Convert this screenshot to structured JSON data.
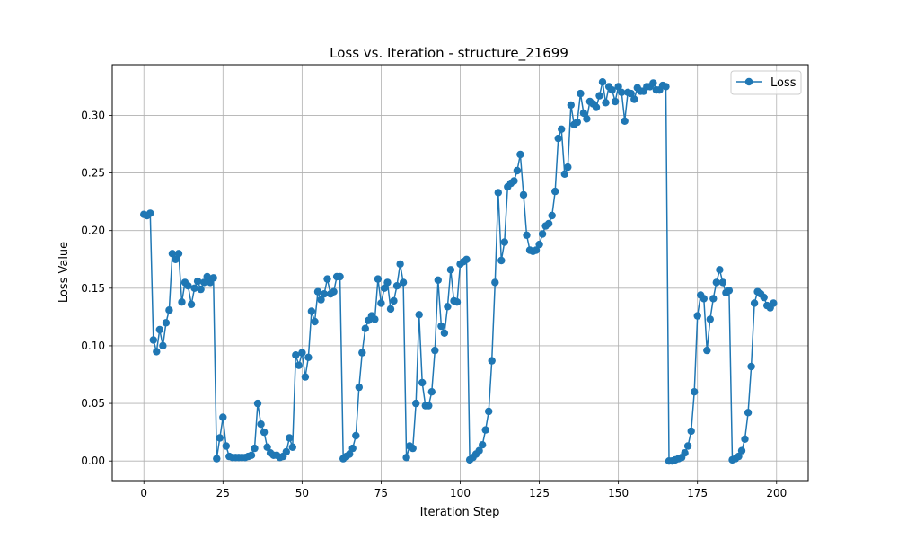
{
  "chart_data": {
    "type": "line",
    "title": "Loss vs. Iteration - structure_21699",
    "xlabel": "Iteration Step",
    "ylabel": "Loss Value",
    "xlim": [
      -10,
      210
    ],
    "ylim": [
      -0.017,
      0.344
    ],
    "xticks": [
      0,
      25,
      50,
      75,
      100,
      125,
      150,
      175,
      200
    ],
    "yticks": [
      0.0,
      0.05,
      0.1,
      0.15,
      0.2,
      0.25,
      0.3
    ],
    "xtick_labels": [
      "0",
      "25",
      "50",
      "75",
      "100",
      "125",
      "150",
      "175",
      "200"
    ],
    "ytick_labels": [
      "0.00",
      "0.05",
      "0.10",
      "0.15",
      "0.20",
      "0.25",
      "0.30"
    ],
    "grid": true,
    "legend_position": "top-right",
    "color": "#1f77b4",
    "series": [
      {
        "name": "Loss",
        "x": [
          0,
          1,
          2,
          3,
          4,
          5,
          6,
          7,
          8,
          9,
          10,
          11,
          12,
          13,
          14,
          15,
          16,
          17,
          18,
          19,
          20,
          21,
          22,
          23,
          24,
          25,
          26,
          27,
          28,
          29,
          30,
          31,
          32,
          33,
          34,
          35,
          36,
          37,
          38,
          39,
          40,
          41,
          42,
          43,
          44,
          45,
          46,
          47,
          48,
          49,
          50,
          51,
          52,
          53,
          54,
          55,
          56,
          57,
          58,
          59,
          60,
          61,
          62,
          63,
          64,
          65,
          66,
          67,
          68,
          69,
          70,
          71,
          72,
          73,
          74,
          75,
          76,
          77,
          78,
          79,
          80,
          81,
          82,
          83,
          84,
          85,
          86,
          87,
          88,
          89,
          90,
          91,
          92,
          93,
          94,
          95,
          96,
          97,
          98,
          99,
          100,
          101,
          102,
          103,
          104,
          105,
          106,
          107,
          108,
          109,
          110,
          111,
          112,
          113,
          114,
          115,
          116,
          117,
          118,
          119,
          120,
          121,
          122,
          123,
          124,
          125,
          126,
          127,
          128,
          129,
          130,
          131,
          132,
          133,
          134,
          135,
          136,
          137,
          138,
          139,
          140,
          141,
          142,
          143,
          144,
          145,
          146,
          147,
          148,
          149,
          150,
          151,
          152,
          153,
          154,
          155,
          156,
          157,
          158,
          159,
          160,
          161,
          162,
          163,
          164,
          165,
          166,
          167,
          168,
          169,
          170,
          171,
          172,
          173,
          174,
          175,
          176,
          177,
          178,
          179,
          180,
          181,
          182,
          183,
          184,
          185,
          186,
          187,
          188,
          189,
          190,
          191,
          192,
          193,
          194,
          195,
          196,
          197,
          198,
          199
        ],
        "values": [
          0.214,
          0.213,
          0.215,
          0.105,
          0.095,
          0.114,
          0.1,
          0.12,
          0.131,
          0.18,
          0.175,
          0.18,
          0.138,
          0.155,
          0.152,
          0.136,
          0.15,
          0.156,
          0.149,
          0.155,
          0.16,
          0.155,
          0.159,
          0.002,
          0.02,
          0.038,
          0.013,
          0.004,
          0.003,
          0.003,
          0.003,
          0.003,
          0.003,
          0.004,
          0.005,
          0.011,
          0.05,
          0.032,
          0.025,
          0.012,
          0.007,
          0.005,
          0.005,
          0.003,
          0.004,
          0.008,
          0.02,
          0.012,
          0.092,
          0.083,
          0.094,
          0.073,
          0.09,
          0.13,
          0.121,
          0.147,
          0.14,
          0.145,
          0.158,
          0.145,
          0.147,
          0.16,
          0.16,
          0.002,
          0.004,
          0.006,
          0.011,
          0.022,
          0.064,
          0.094,
          0.115,
          0.122,
          0.126,
          0.123,
          0.158,
          0.137,
          0.15,
          0.155,
          0.132,
          0.139,
          0.152,
          0.171,
          0.155,
          0.003,
          0.013,
          0.011,
          0.05,
          0.127,
          0.068,
          0.048,
          0.048,
          0.06,
          0.096,
          0.157,
          0.117,
          0.111,
          0.134,
          0.166,
          0.139,
          0.138,
          0.171,
          0.173,
          0.175,
          0.001,
          0.003,
          0.006,
          0.009,
          0.014,
          0.027,
          0.043,
          0.087,
          0.155,
          0.233,
          0.174,
          0.19,
          0.238,
          0.241,
          0.243,
          0.252,
          0.266,
          0.231,
          0.196,
          0.183,
          0.182,
          0.183,
          0.188,
          0.197,
          0.204,
          0.206,
          0.213,
          0.234,
          0.28,
          0.288,
          0.249,
          0.255,
          0.309,
          0.292,
          0.294,
          0.319,
          0.302,
          0.297,
          0.312,
          0.31,
          0.307,
          0.317,
          0.329,
          0.311,
          0.325,
          0.322,
          0.312,
          0.325,
          0.32,
          0.295,
          0.32,
          0.319,
          0.314,
          0.324,
          0.321,
          0.321,
          0.325,
          0.325,
          0.328,
          0.322,
          0.322,
          0.326,
          0.325,
          0.0,
          0.0,
          0.001,
          0.002,
          0.003,
          0.007,
          0.013,
          0.026,
          0.06,
          0.126,
          0.144,
          0.141,
          0.096,
          0.123,
          0.141,
          0.155,
          0.166,
          0.155,
          0.146,
          0.148,
          0.001,
          0.002,
          0.004,
          0.009,
          0.019,
          0.042,
          0.082,
          0.137,
          0.147,
          0.145,
          0.142,
          0.135,
          0.133,
          0.137
        ]
      }
    ]
  }
}
